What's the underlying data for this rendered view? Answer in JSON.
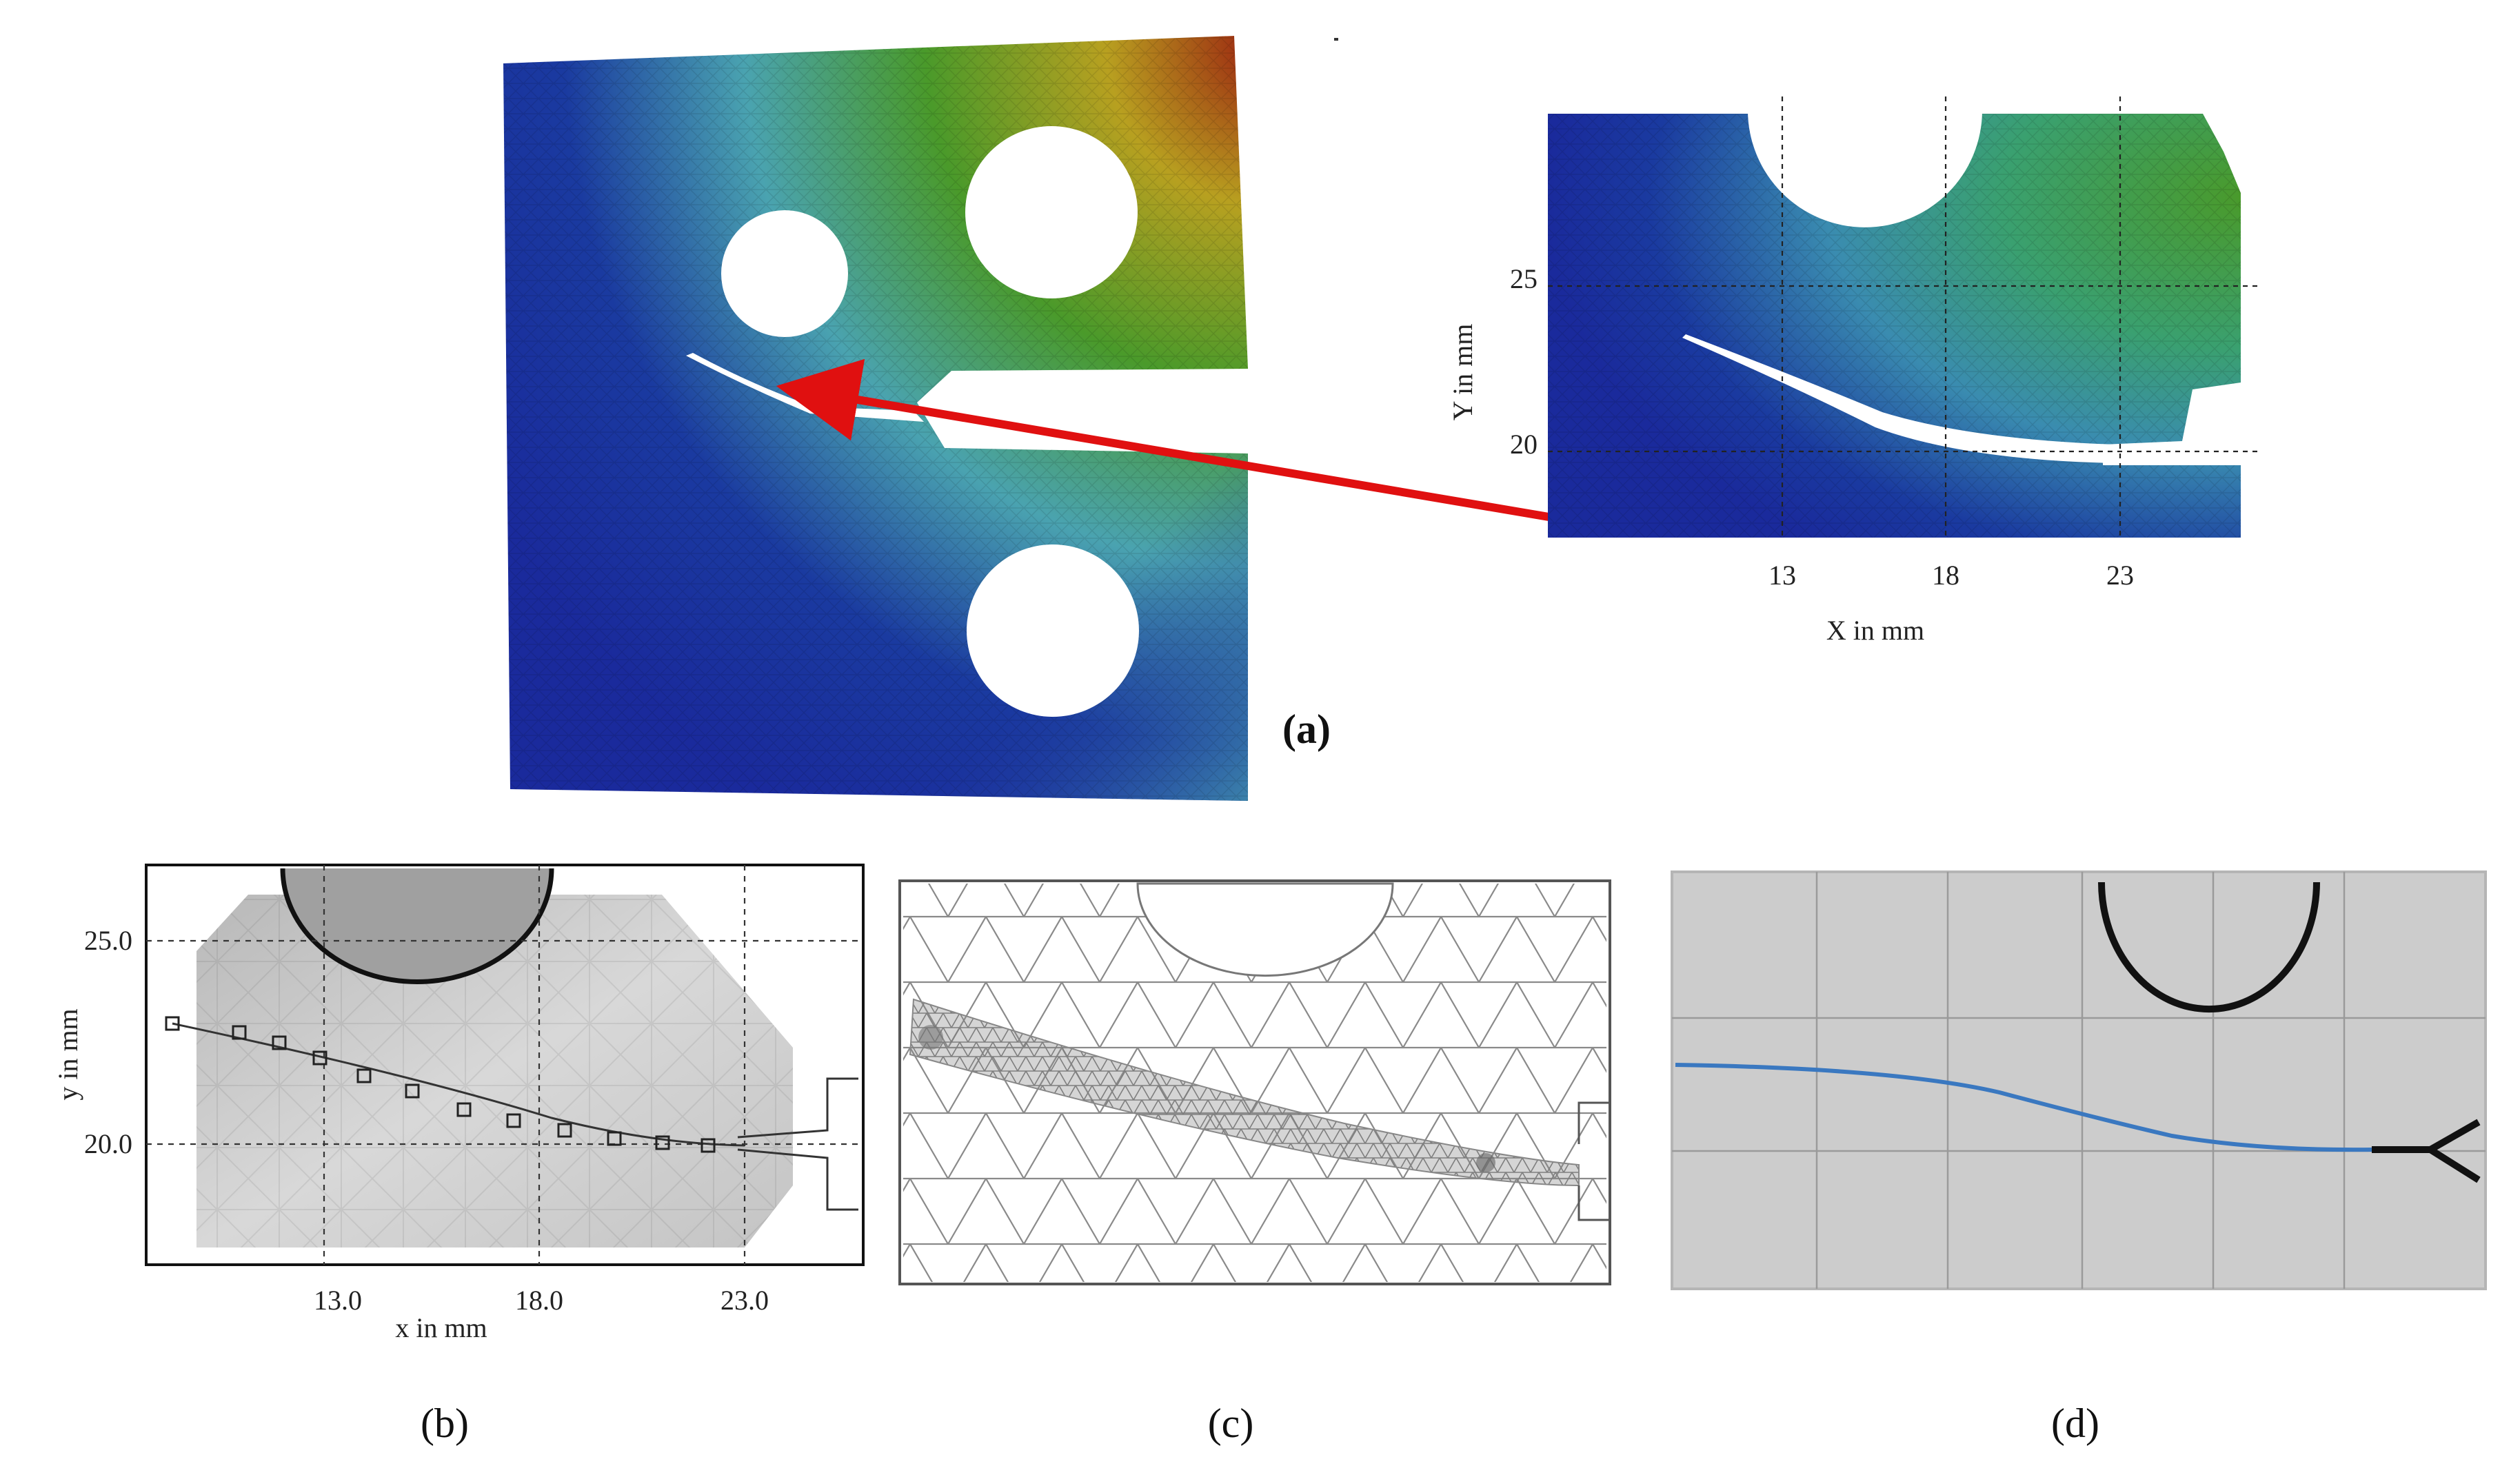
{
  "panels": {
    "a": {
      "label": "(a)",
      "inset": {
        "xlabel": "X in mm",
        "ylabel": "Y in mm",
        "xticks": [
          "13",
          "18",
          "23"
        ],
        "yticks": [
          "25",
          "20"
        ]
      }
    },
    "b": {
      "label": "(b)",
      "xlabel": "x in mm",
      "ylabel": "y in mm",
      "xticks": [
        "13.0",
        "18.0",
        "23.0"
      ],
      "yticks": [
        "25.0",
        "20.0"
      ]
    },
    "c": {
      "label": "(c)"
    },
    "d": {
      "label": "(d)"
    }
  },
  "colors": {
    "field_low": "#1a2a9c",
    "field_mid": "#4aa3b0",
    "field_high_green": "#4a9a2a",
    "field_max": "#9a1c10",
    "arrow": "#e01010",
    "panel_d_background": "#cccccc",
    "crack_path_d": "#3a78c0"
  }
}
